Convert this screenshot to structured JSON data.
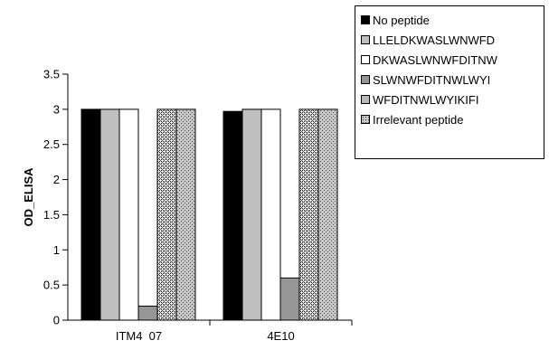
{
  "chart_data": {
    "type": "bar",
    "ylabel": "OD_ELISA",
    "ylim": [
      0,
      3.5
    ],
    "yticks": [
      "0",
      "0.5",
      "1",
      "1.5",
      "2",
      "2.5",
      "3",
      "3.5"
    ],
    "categories": [
      "ITM4  07",
      "4E10"
    ],
    "series": [
      {
        "name": "No peptide",
        "values": [
          3.0,
          2.97
        ],
        "fill": "black"
      },
      {
        "name": "LLELDKWASLWNWFD",
        "values": [
          3.0,
          3.0
        ],
        "fill": "lightgray"
      },
      {
        "name": "DKWASLWNWFDITNW",
        "values": [
          3.0,
          3.0
        ],
        "fill": "white"
      },
      {
        "name": "SLWNWFDITNWLWYI",
        "values": [
          0.2,
          0.6
        ],
        "fill": "gray"
      },
      {
        "name": "WFDITNWLWYIKIFI",
        "values": [
          3.0,
          3.0
        ],
        "fill": "grid"
      },
      {
        "name": "Irrelevant peptide",
        "values": [
          3.0,
          3.0
        ],
        "fill": "dots"
      }
    ],
    "legend_position": "top-right",
    "grid": false
  }
}
